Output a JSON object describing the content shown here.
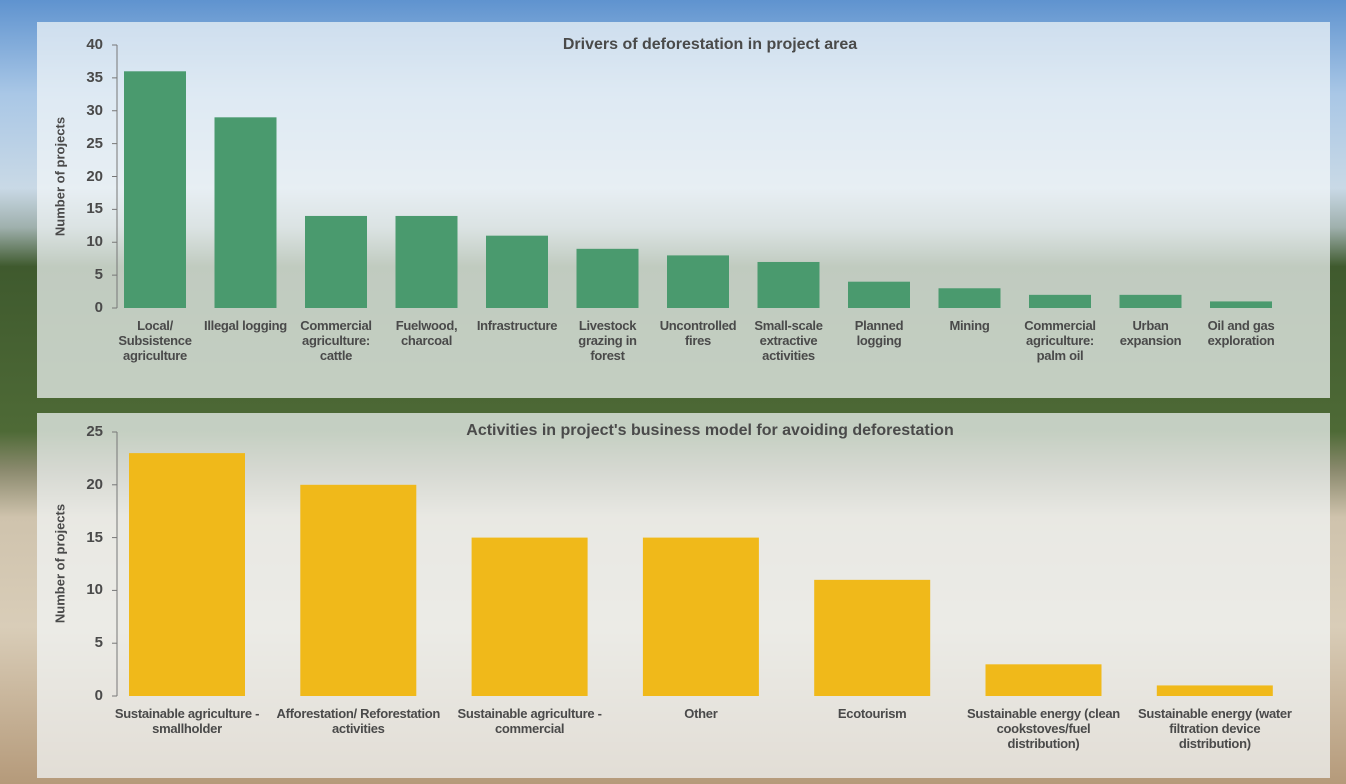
{
  "chart_data": [
    {
      "type": "bar",
      "title": "Drivers of deforestation in project area",
      "y_label": "Number of projects",
      "categories": [
        "Local/ Subsistence agriculture",
        "Illegal logging",
        "Commercial agriculture: cattle",
        "Fuelwood, charcoal",
        "Infrastructure",
        "Livestock grazing in forest",
        "Uncontrolled fires",
        "Small-scale extractive activities",
        "Planned logging",
        "Mining",
        "Commercial agriculture: palm oil",
        "Urban expansion",
        "Oil and gas exploration"
      ],
      "values": [
        36,
        29,
        14,
        14,
        11,
        9,
        8,
        7,
        4,
        3,
        2,
        2,
        1
      ],
      "color": "#4a9a6e",
      "ylim": [
        0,
        40
      ],
      "yticks": [
        0,
        5,
        10,
        15,
        20,
        25,
        30,
        35,
        40
      ]
    },
    {
      "type": "bar",
      "title": "Activities in project's business model for avoiding deforestation",
      "y_label": "Number of projects",
      "categories": [
        "Sustainable agriculture - smallholder",
        "Afforestation/ Reforestation activities",
        "Sustainable agriculture - commercial",
        "Other",
        "Ecotourism",
        "Sustainable energy (clean cookstoves/fuel distribution)",
        "Sustainable energy (water filtration device distribution)"
      ],
      "values": [
        23,
        20,
        15,
        15,
        11,
        3,
        1
      ],
      "color": "#f0b91a",
      "ylim": [
        0,
        25
      ],
      "yticks": [
        0,
        5,
        10,
        15,
        20,
        25
      ]
    }
  ]
}
